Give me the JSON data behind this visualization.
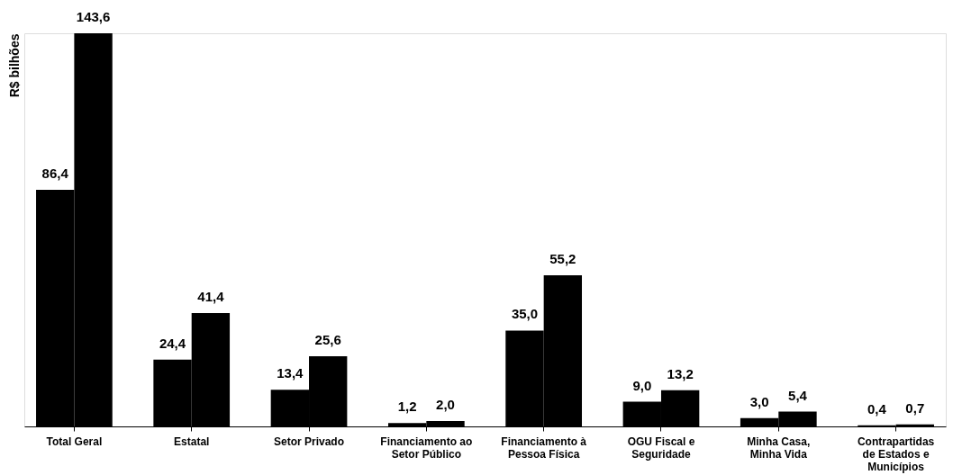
{
  "chart_data": {
    "type": "bar",
    "ylabel": "R$ bilhões",
    "categories": [
      "Total Geral",
      "Estatal",
      "Setor Privado",
      "Financiamento ao Setor Público",
      "Financiamento à Pessoa Física",
      "OGU Fiscal e Seguridade",
      "Minha Casa, Minha Vida",
      "Contrapartidas de Estados e Municípios"
    ],
    "series": [
      {
        "color": "#000000",
        "values": [
          86.4,
          24.4,
          13.4,
          1.2,
          35.0,
          9.0,
          3.0,
          0.4
        ],
        "value_labels": [
          "86,4",
          "24,4",
          "13,4",
          "1,2",
          "35,0",
          "9,0",
          "3,0",
          "0,4"
        ]
      },
      {
        "color": "#000000",
        "values": [
          143.6,
          41.4,
          25.6,
          2.0,
          55.2,
          13.2,
          5.4,
          0.7
        ],
        "value_labels": [
          "143,6",
          "41,4",
          "25,6",
          "2,0",
          "55,2",
          "13,2",
          "5,4",
          "0,7"
        ]
      }
    ],
    "grid": false,
    "legend": false
  }
}
